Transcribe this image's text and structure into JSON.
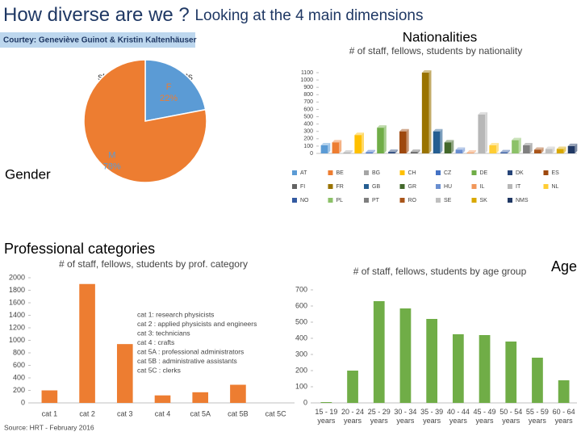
{
  "header": {
    "title": "How diverse are we ?",
    "subtitle": "Looking at the 4 main dimensions",
    "credit": "Courtey: Geneviève Guinot & Kristin Kaltenhäuser"
  },
  "chart_data": [
    {
      "type": "pie",
      "title": "staff, fellows, students",
      "label": "Gender",
      "categories": [
        "F",
        "M"
      ],
      "values": [
        22,
        78
      ],
      "value_labels": [
        "22%",
        "78%"
      ],
      "colors": [
        "#5b9bd5",
        "#ed7d31"
      ]
    },
    {
      "type": "bar",
      "title": "Nationalities",
      "subtitle": "# of staff, fellows, students by nationality",
      "categories": [
        "AT",
        "BE",
        "BG",
        "CH",
        "CZ",
        "DE",
        "DK",
        "ES",
        "FI",
        "FR",
        "GB",
        "GR",
        "HU",
        "IL",
        "IT",
        "NL",
        "NO",
        "PL",
        "PT",
        "RO",
        "SE",
        "SK",
        "NMS"
      ],
      "values": [
        110,
        150,
        10,
        250,
        15,
        350,
        20,
        300,
        20,
        1100,
        300,
        150,
        50,
        10,
        530,
        110,
        15,
        180,
        110,
        50,
        60,
        60,
        100
      ],
      "colors": [
        "#5b9bd5",
        "#ed7d31",
        "#a5a5a5",
        "#ffc000",
        "#4472c4",
        "#70ad47",
        "#264478",
        "#9e480e",
        "#636363",
        "#997300",
        "#255e91",
        "#43682b",
        "#698ed0",
        "#f1975a",
        "#b7b7b7",
        "#ffcd33",
        "#335aa1",
        "#8cc168",
        "#7f7f7f",
        "#a9551a",
        "#bfbfbf",
        "#d9a800",
        "#203864"
      ],
      "ylim": [
        0,
        1100
      ],
      "yticks": [
        0,
        100,
        200,
        300,
        400,
        500,
        600,
        700,
        800,
        900,
        1000,
        1100
      ],
      "legend": true
    },
    {
      "type": "bar",
      "title": "Professional categories",
      "subtitle": "# of staff, fellows, students by prof. category",
      "categories": [
        "cat 1",
        "cat 2",
        "cat 3",
        "cat 4",
        "cat 5A",
        "cat 5B",
        "cat 5C"
      ],
      "values": [
        200,
        1900,
        940,
        120,
        170,
        290,
        0
      ],
      "color": "#ed7d31",
      "ylim": [
        0,
        2000
      ],
      "yticks": [
        0,
        200,
        400,
        600,
        800,
        1000,
        1200,
        1400,
        1600,
        1800,
        2000
      ],
      "annotations": [
        "cat 1: research physicists",
        "cat 2 : applied physicists and engineers",
        "cat 3: technicians",
        "cat 4 : crafts",
        "cat 5A : professional administrators",
        "cat 5B : administrative assistants",
        "cat 5C : clerks"
      ],
      "source": "Source: HRT - February 2016"
    },
    {
      "type": "bar",
      "title": "Age",
      "subtitle": "# of staff, fellows, students by age group",
      "categories": [
        "15 - 19 years",
        "20 - 24 years",
        "25 - 29 years",
        "30 - 34 years",
        "35 - 39 years",
        "40 - 44 years",
        "45 - 49 years",
        "50 - 54 years",
        "55 - 59 years",
        "60 - 64 years"
      ],
      "values": [
        5,
        200,
        630,
        585,
        520,
        425,
        420,
        380,
        280,
        140
      ],
      "color": "#70ad47",
      "ylim": [
        0,
        700
      ],
      "yticks": [
        0,
        100,
        200,
        300,
        400,
        500,
        600,
        700
      ],
      "htmlLabels": true
    }
  ]
}
